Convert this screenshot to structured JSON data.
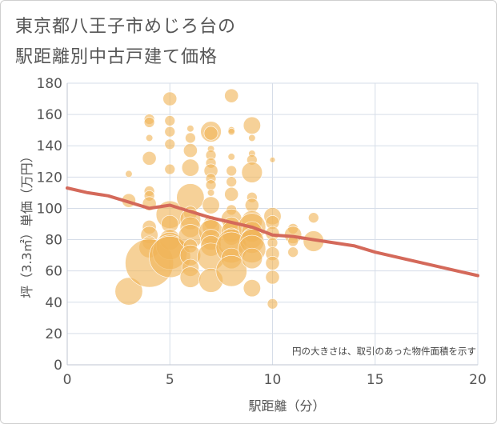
{
  "title_line1": "東京都八王子市めじろ台の",
  "title_line2": "駅距離別中古戸建て価格",
  "chart_data": {
    "type": "scatter",
    "xlabel": "駅距離（分）",
    "ylabel": "坪（3.3㎡）単価（万円）",
    "xlim": [
      0,
      20
    ],
    "ylim": [
      0,
      180
    ],
    "xticks": [
      0,
      5,
      10,
      15,
      20
    ],
    "yticks": [
      0,
      20,
      40,
      60,
      80,
      100,
      120,
      140,
      160,
      180
    ],
    "grid": true,
    "note": "円の大きさは、取引のあった物件面積を示す",
    "colors": {
      "bubble": "#f0b458",
      "trend": "#d4695a",
      "grid": "#d6dde8"
    },
    "trend": {
      "x": [
        0,
        1,
        2,
        3,
        4,
        5,
        6,
        7,
        8,
        9,
        10,
        11,
        12,
        13,
        14,
        15,
        16,
        17,
        18,
        19,
        20
      ],
      "y": [
        113,
        110,
        108,
        104,
        100,
        102,
        98,
        94,
        91,
        88,
        83,
        82,
        80,
        78,
        76,
        72,
        69,
        66,
        63,
        60,
        57
      ]
    },
    "bubbles": [
      {
        "x": 3,
        "y": 122,
        "r": 1
      },
      {
        "x": 3,
        "y": 105,
        "r": 2
      },
      {
        "x": 3,
        "y": 47,
        "r": 4
      },
      {
        "x": 4,
        "y": 157,
        "r": 1.5
      },
      {
        "x": 4,
        "y": 155,
        "r": 1.5
      },
      {
        "x": 4,
        "y": 145,
        "r": 1
      },
      {
        "x": 4,
        "y": 132,
        "r": 2
      },
      {
        "x": 4,
        "y": 111,
        "r": 1.5
      },
      {
        "x": 4,
        "y": 108,
        "r": 1.5
      },
      {
        "x": 4,
        "y": 103,
        "r": 2
      },
      {
        "x": 4,
        "y": 88,
        "r": 2
      },
      {
        "x": 4,
        "y": 83,
        "r": 2.5
      },
      {
        "x": 4,
        "y": 78,
        "r": 2
      },
      {
        "x": 4,
        "y": 75,
        "r": 3
      },
      {
        "x": 4,
        "y": 65,
        "r": 7
      },
      {
        "x": 5,
        "y": 170,
        "r": 2
      },
      {
        "x": 5,
        "y": 156,
        "r": 1.5
      },
      {
        "x": 5,
        "y": 149,
        "r": 1.5
      },
      {
        "x": 5,
        "y": 141,
        "r": 1.5
      },
      {
        "x": 5,
        "y": 125,
        "r": 1.5
      },
      {
        "x": 5,
        "y": 96,
        "r": 4
      },
      {
        "x": 5,
        "y": 90,
        "r": 2.5
      },
      {
        "x": 5,
        "y": 80,
        "r": 3
      },
      {
        "x": 5,
        "y": 76,
        "r": 4
      },
      {
        "x": 5,
        "y": 72,
        "r": 5
      },
      {
        "x": 5,
        "y": 69,
        "r": 6
      },
      {
        "x": 6,
        "y": 151,
        "r": 1
      },
      {
        "x": 6,
        "y": 145,
        "r": 1.5
      },
      {
        "x": 6,
        "y": 137,
        "r": 2
      },
      {
        "x": 6,
        "y": 126,
        "r": 2.5
      },
      {
        "x": 6,
        "y": 107,
        "r": 4
      },
      {
        "x": 6,
        "y": 97,
        "r": 2
      },
      {
        "x": 6,
        "y": 93,
        "r": 3
      },
      {
        "x": 6,
        "y": 88,
        "r": 3
      },
      {
        "x": 6,
        "y": 82,
        "r": 3.5
      },
      {
        "x": 6,
        "y": 76,
        "r": 2
      },
      {
        "x": 6,
        "y": 70,
        "r": 3
      },
      {
        "x": 6,
        "y": 62,
        "r": 2.5
      },
      {
        "x": 6,
        "y": 56,
        "r": 3
      },
      {
        "x": 7,
        "y": 149,
        "r": 3
      },
      {
        "x": 7,
        "y": 148,
        "r": 2
      },
      {
        "x": 7,
        "y": 138,
        "r": 1
      },
      {
        "x": 7,
        "y": 134,
        "r": 1.5
      },
      {
        "x": 7,
        "y": 129,
        "r": 1.5
      },
      {
        "x": 7,
        "y": 124,
        "r": 2
      },
      {
        "x": 7,
        "y": 119,
        "r": 1.5
      },
      {
        "x": 7,
        "y": 115,
        "r": 1.5
      },
      {
        "x": 7,
        "y": 110,
        "r": 1
      },
      {
        "x": 7,
        "y": 102,
        "r": 2.5
      },
      {
        "x": 7,
        "y": 91,
        "r": 2
      },
      {
        "x": 7,
        "y": 88,
        "r": 2.5
      },
      {
        "x": 7,
        "y": 85,
        "r": 3.5
      },
      {
        "x": 7,
        "y": 80,
        "r": 3
      },
      {
        "x": 7,
        "y": 76,
        "r": 3
      },
      {
        "x": 7,
        "y": 69,
        "r": 4
      },
      {
        "x": 7,
        "y": 54,
        "r": 3.5
      },
      {
        "x": 8,
        "y": 172,
        "r": 2
      },
      {
        "x": 8,
        "y": 150,
        "r": 1
      },
      {
        "x": 8,
        "y": 149,
        "r": 1
      },
      {
        "x": 8,
        "y": 133,
        "r": 1
      },
      {
        "x": 8,
        "y": 124,
        "r": 1.5
      },
      {
        "x": 8,
        "y": 117,
        "r": 1.5
      },
      {
        "x": 8,
        "y": 109,
        "r": 2
      },
      {
        "x": 8,
        "y": 99,
        "r": 1.5
      },
      {
        "x": 8,
        "y": 93,
        "r": 3
      },
      {
        "x": 8,
        "y": 89,
        "r": 2.5
      },
      {
        "x": 8,
        "y": 85,
        "r": 3
      },
      {
        "x": 8,
        "y": 82,
        "r": 2.5
      },
      {
        "x": 8,
        "y": 78,
        "r": 4
      },
      {
        "x": 8,
        "y": 75,
        "r": 4.5
      },
      {
        "x": 8,
        "y": 68,
        "r": 3
      },
      {
        "x": 8,
        "y": 60,
        "r": 4.5
      },
      {
        "x": 9,
        "y": 153,
        "r": 2.5
      },
      {
        "x": 9,
        "y": 145,
        "r": 1
      },
      {
        "x": 9,
        "y": 135,
        "r": 1
      },
      {
        "x": 9,
        "y": 131,
        "r": 1.5
      },
      {
        "x": 9,
        "y": 123,
        "r": 3
      },
      {
        "x": 9,
        "y": 107,
        "r": 1.5
      },
      {
        "x": 9,
        "y": 102,
        "r": 2
      },
      {
        "x": 9,
        "y": 92,
        "r": 3
      },
      {
        "x": 9,
        "y": 88,
        "r": 4
      },
      {
        "x": 9,
        "y": 85,
        "r": 3
      },
      {
        "x": 9,
        "y": 81,
        "r": 3
      },
      {
        "x": 9,
        "y": 79,
        "r": 3.5
      },
      {
        "x": 9,
        "y": 74,
        "r": 4
      },
      {
        "x": 9,
        "y": 68,
        "r": 3
      },
      {
        "x": 9,
        "y": 49,
        "r": 2.5
      },
      {
        "x": 10,
        "y": 131,
        "r": 0.8
      },
      {
        "x": 10,
        "y": 95,
        "r": 2.5
      },
      {
        "x": 10,
        "y": 91,
        "r": 2
      },
      {
        "x": 10,
        "y": 84,
        "r": 2
      },
      {
        "x": 10,
        "y": 78,
        "r": 1.5
      },
      {
        "x": 10,
        "y": 71,
        "r": 2
      },
      {
        "x": 10,
        "y": 65,
        "r": 2
      },
      {
        "x": 10,
        "y": 56,
        "r": 2
      },
      {
        "x": 10,
        "y": 39,
        "r": 1.5
      },
      {
        "x": 11,
        "y": 87,
        "r": 1.5
      },
      {
        "x": 11,
        "y": 83,
        "r": 2.5
      },
      {
        "x": 11,
        "y": 79,
        "r": 1.5
      },
      {
        "x": 11,
        "y": 72,
        "r": 1.5
      },
      {
        "x": 12,
        "y": 94,
        "r": 1.5
      },
      {
        "x": 12,
        "y": 79,
        "r": 3
      }
    ]
  }
}
